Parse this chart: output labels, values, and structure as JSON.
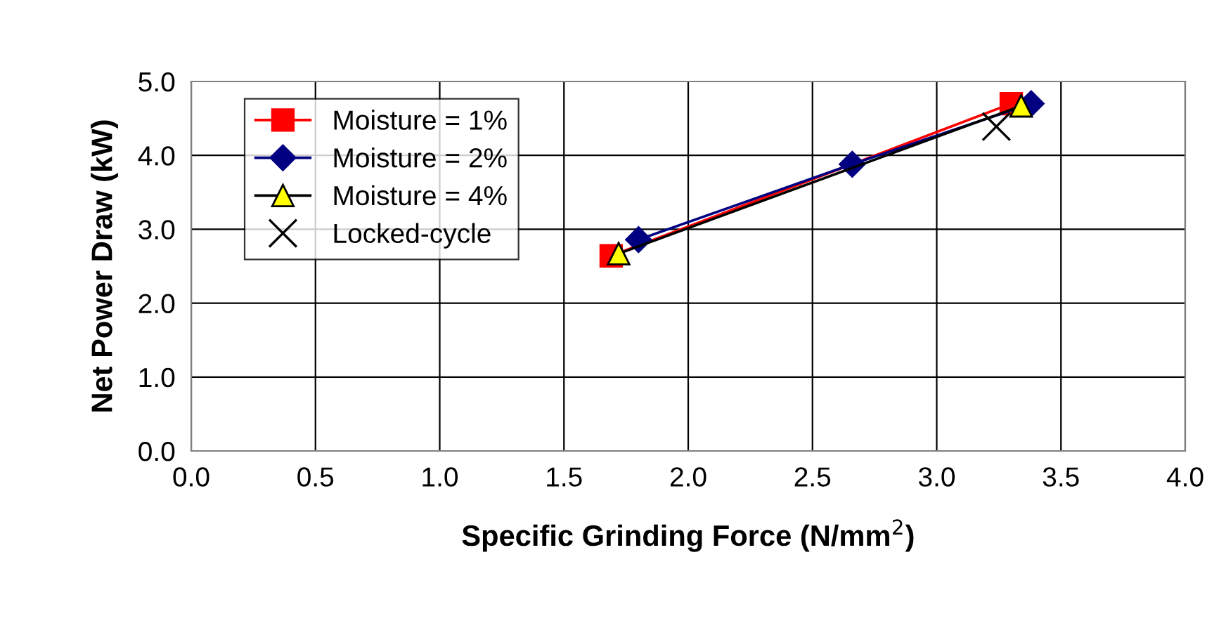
{
  "chart_data": {
    "type": "line",
    "xlabel": "Specific Grinding Force (N/mm$^{2}$)",
    "ylabel": "Net Power Draw (kW)",
    "xlim": [
      0,
      4
    ],
    "xticks": [
      {
        "value": 0,
        "label": "0.0"
      },
      {
        "value": 0.5,
        "label": "0.5"
      },
      {
        "value": 1,
        "label": "1.0"
      },
      {
        "value": 1.5,
        "label": "1.5"
      },
      {
        "value": 2,
        "label": "2.0"
      },
      {
        "value": 2.5,
        "label": "2.5"
      },
      {
        "value": 3,
        "label": "3.0"
      },
      {
        "value": 3.5,
        "label": "3.5"
      },
      {
        "value": 4,
        "label": "4.0"
      }
    ],
    "ylim": [
      0,
      5
    ],
    "yticks": [
      {
        "value": 0,
        "label": "0.0"
      },
      {
        "value": 1,
        "label": "1.0"
      },
      {
        "value": 2,
        "label": "2.0"
      },
      {
        "value": 3,
        "label": "3.0"
      },
      {
        "value": 4,
        "label": "4.0"
      },
      {
        "value": 5,
        "label": "5.0"
      }
    ],
    "grid": true,
    "legend": "top left",
    "series": [
      {
        "name": "Moisture = 1%",
        "color": "#ff0000",
        "marker": "square",
        "x": [
          1.69,
          3.3
        ],
        "values": [
          2.64,
          4.7
        ]
      },
      {
        "name": "Moisture = 2%",
        "color": "#000080",
        "marker": "diamond",
        "x": [
          1.8,
          2.66,
          3.38
        ],
        "values": [
          2.86,
          3.88,
          4.7
        ]
      },
      {
        "name": "Moisture = 4%",
        "color": "#ffff00",
        "marker": "triangle",
        "x": [
          1.72,
          3.34
        ],
        "values": [
          2.67,
          4.67
        ]
      },
      {
        "name": "Locked-cycle",
        "type": "scatter",
        "color": "#000000",
        "marker": "cross",
        "x": [
          3.24
        ],
        "values": [
          4.39
        ]
      }
    ]
  }
}
